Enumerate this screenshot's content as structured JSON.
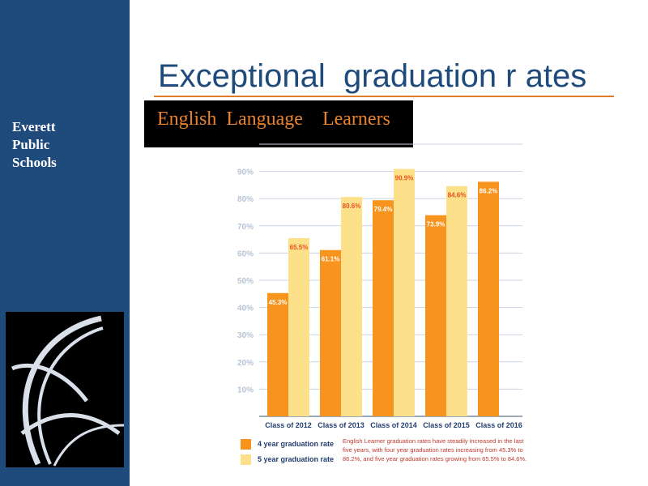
{
  "slide": {
    "title": "Exceptional  graduation r ates",
    "subtitle": "English  Language    Learners",
    "org_lines": [
      "Everett",
      "Public",
      "Schools"
    ],
    "note": "English Learner graduation rates have steadily increased in the last five years, with four year graduation rates increasing from 45.3% to 86.2%, and five year graduation rates growing from 65.5% to 84.6%."
  },
  "colors": {
    "sidebar": "#1f4a7c",
    "title": "#1f4a7c",
    "rule": "#e07b2a",
    "subtitle": "#e8822c",
    "four_year": "#f7941d",
    "five_year": "#fde08a",
    "bar_label_light": "#ffffff",
    "bar_label_dark": "#e8521c",
    "tick": "#b8c4d4",
    "category": "#233f6e"
  },
  "chart_data": {
    "type": "bar",
    "categories": [
      "Class of 2012",
      "Class of 2013",
      "Class of 2014",
      "Class of 2015",
      "Class of 2016"
    ],
    "series": [
      {
        "name": "4 year graduation rate",
        "values": [
          45.3,
          61.1,
          79.4,
          73.9,
          86.2
        ],
        "labels": [
          "45.3%",
          "61.1%",
          "79.4%",
          "73.9%",
          "86.2%"
        ]
      },
      {
        "name": "5 year graduation rate",
        "values": [
          65.5,
          80.6,
          90.9,
          84.6,
          null
        ],
        "labels": [
          "65.5%",
          "80.6%",
          "90.9%",
          "84.6%",
          null
        ]
      }
    ],
    "yticks": [
      "10%",
      "20%",
      "30%",
      "40%",
      "50%",
      "60%",
      "70%",
      "80%",
      "90%"
    ],
    "ytick_values": [
      10,
      20,
      30,
      40,
      50,
      60,
      70,
      80,
      90
    ],
    "ylim": [
      0,
      100
    ],
    "grid": true,
    "legend": "bottom-left"
  }
}
